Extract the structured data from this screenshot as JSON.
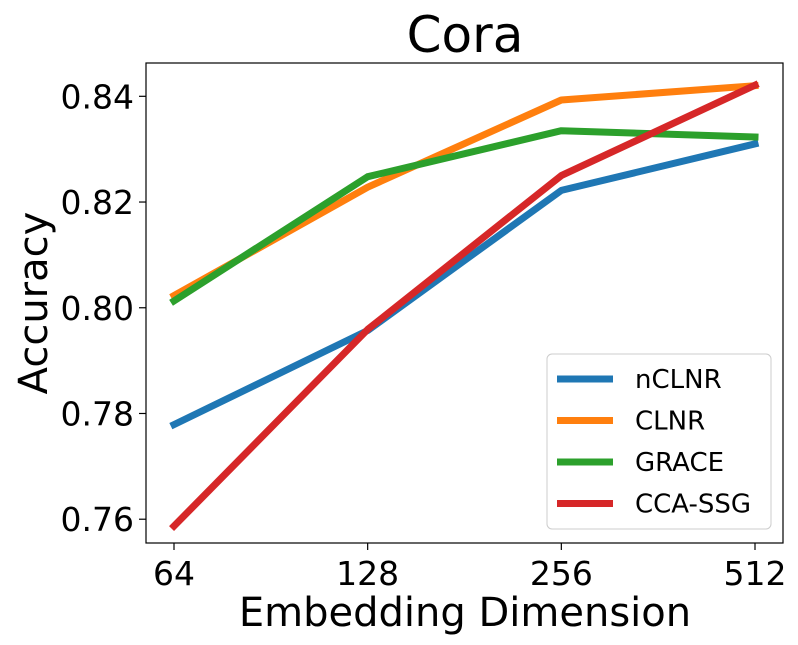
{
  "chart_data": {
    "type": "line",
    "title": "Cora",
    "xlabel": "Embedding Dimension",
    "ylabel": "Accuracy",
    "categories": [
      "64",
      "128",
      "256",
      "512"
    ],
    "ylim": [
      0.7555,
      0.8463
    ],
    "yticks": [
      "0.76",
      "0.78",
      "0.80",
      "0.82",
      "0.84"
    ],
    "ytick_values": [
      0.76,
      0.78,
      0.8,
      0.82,
      0.84
    ],
    "grid": false,
    "legend_position": "lower-right",
    "series": [
      {
        "name": "nCLNR",
        "color": "#1f77b4",
        "values": [
          0.7779,
          0.7957,
          0.8222,
          0.831
        ]
      },
      {
        "name": "CLNR",
        "color": "#ff7f0e",
        "values": [
          0.8023,
          0.8228,
          0.8393,
          0.842
        ]
      },
      {
        "name": "GRACE",
        "color": "#2ca02c",
        "values": [
          0.8013,
          0.8248,
          0.8335,
          0.8323
        ]
      },
      {
        "name": "CCA-SSG",
        "color": "#d62728",
        "values": [
          0.7587,
          0.7959,
          0.825,
          0.8421
        ]
      }
    ]
  }
}
